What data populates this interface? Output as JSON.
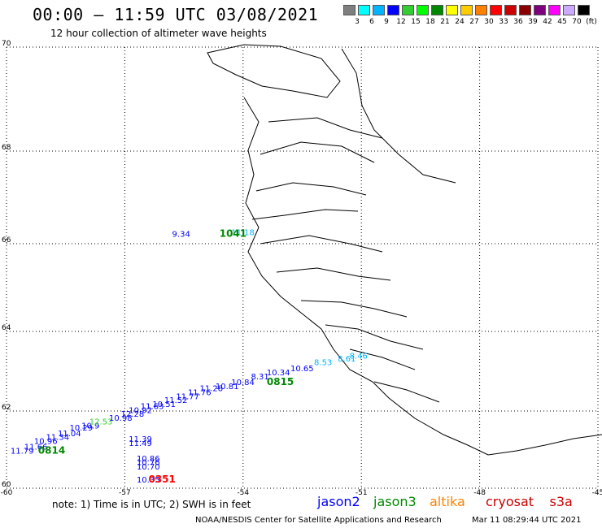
{
  "header": {
    "title": "00:00 – 11:59 UTC 03/08/2021",
    "subtitle": "12 hour collection of altimeter wave heights"
  },
  "legend": {
    "colors": [
      "#7f7f7f",
      "#00ffff",
      "#00b4ff",
      "#0000ff",
      "#33cc33",
      "#00ff00",
      "#008800",
      "#ffff00",
      "#ffcc00",
      "#ff8000",
      "#ff0000",
      "#cc0000",
      "#8b0000",
      "#7f007f",
      "#ff00ff",
      "#ccaaff",
      "#000000"
    ],
    "labels": [
      "3",
      "6",
      "9",
      "12",
      "15",
      "18",
      "21",
      "24",
      "27",
      "30",
      "33",
      "36",
      "39",
      "42",
      "45",
      "70",
      "(ft)"
    ]
  },
  "axes": {
    "x_ticks": [
      "-60",
      "-57",
      "-54",
      "-51",
      "-48",
      "-45"
    ],
    "y_ticks": [
      "70",
      "68",
      "66",
      "64",
      "62",
      "60"
    ]
  },
  "tracks": {
    "time_labels": [
      {
        "text": "0814",
        "color": "#008800",
        "lon": -59.2,
        "lat": 60.9
      },
      {
        "text": "0815",
        "color": "#008800",
        "lon": -53.4,
        "lat": 62.65
      },
      {
        "text": "0351",
        "color": "#ff0000",
        "lon": -56.4,
        "lat": 60.15
      },
      {
        "text": "1041",
        "color": "#008800",
        "lon": -54.6,
        "lat": 66.15
      }
    ],
    "wave_labels": [
      {
        "text": "11.79",
        "color": "#0000ff",
        "lon": -59.9,
        "lat": 60.9
      },
      {
        "text": "11.66",
        "color": "#0000ff",
        "lon": -59.55,
        "lat": 61.0
      },
      {
        "text": "10.96",
        "color": "#0000ff",
        "lon": -59.3,
        "lat": 61.15
      },
      {
        "text": "11.34",
        "color": "#0000ff",
        "lon": -59.0,
        "lat": 61.25
      },
      {
        "text": "11.04",
        "color": "#0000ff",
        "lon": -58.7,
        "lat": 61.35
      },
      {
        "text": "10.29",
        "color": "#0000ff",
        "lon": -58.4,
        "lat": 61.5
      },
      {
        "text": "10.9",
        "color": "#0000ff",
        "lon": -58.1,
        "lat": 61.55
      },
      {
        "text": "12.53",
        "color": "#33cc33",
        "lon": -57.9,
        "lat": 61.65
      },
      {
        "text": "10.98",
        "color": "#0000ff",
        "lon": -57.4,
        "lat": 61.75
      },
      {
        "text": "12.28",
        "color": "#0000ff",
        "lon": -57.1,
        "lat": 61.85
      },
      {
        "text": "10.92",
        "color": "#0000ff",
        "lon": -56.9,
        "lat": 61.95
      },
      {
        "text": "11.63",
        "color": "#0000ff",
        "lon": -56.6,
        "lat": 62.05
      },
      {
        "text": "10.51",
        "color": "#0000ff",
        "lon": -56.3,
        "lat": 62.1
      },
      {
        "text": "11.52",
        "color": "#0000ff",
        "lon": -56.0,
        "lat": 62.2
      },
      {
        "text": "11.77",
        "color": "#0000ff",
        "lon": -55.7,
        "lat": 62.3
      },
      {
        "text": "11.76",
        "color": "#0000ff",
        "lon": -55.4,
        "lat": 62.4
      },
      {
        "text": "11.28",
        "color": "#0000ff",
        "lon": -55.1,
        "lat": 62.5
      },
      {
        "text": "10.81",
        "color": "#0000ff",
        "lon": -54.7,
        "lat": 62.55
      },
      {
        "text": "10.84",
        "color": "#0000ff",
        "lon": -54.3,
        "lat": 62.65
      },
      {
        "text": "8.31",
        "color": "#0000ff",
        "lon": -53.8,
        "lat": 62.8
      },
      {
        "text": "10.34",
        "color": "#0000ff",
        "lon": -53.4,
        "lat": 62.9
      },
      {
        "text": "10.65",
        "color": "#0000ff",
        "lon": -52.8,
        "lat": 63.0
      },
      {
        "text": "8.53",
        "color": "#00b4ff",
        "lon": -52.2,
        "lat": 63.15
      },
      {
        "text": "8.61",
        "color": "#00b4ff",
        "lon": -51.6,
        "lat": 63.25
      },
      {
        "text": "8.46",
        "color": "#00b4ff",
        "lon": -51.3,
        "lat": 63.32
      },
      {
        "text": "11.39",
        "color": "#0000ff",
        "lon": -56.9,
        "lat": 61.2
      },
      {
        "text": "11.49",
        "color": "#0000ff",
        "lon": -56.9,
        "lat": 61.1
      },
      {
        "text": "10.86",
        "color": "#0000ff",
        "lon": -56.7,
        "lat": 60.7
      },
      {
        "text": "10.76",
        "color": "#0000ff",
        "lon": -56.7,
        "lat": 60.6
      },
      {
        "text": "10.70",
        "color": "#0000ff",
        "lon": -56.7,
        "lat": 60.48
      },
      {
        "text": "10.35",
        "color": "#0000ff",
        "lon": -56.7,
        "lat": 60.15
      },
      {
        "text": "9.34",
        "color": "#0000ff",
        "lon": -55.8,
        "lat": 66.15
      },
      {
        "text": "11.18",
        "color": "#00b4ff",
        "lon": -54.3,
        "lat": 66.18
      }
    ]
  },
  "footer": {
    "note": "note:  1) Time is in UTC;  2) SWH is in feet",
    "satellites": [
      {
        "name": "jason2",
        "color": "#0000ff"
      },
      {
        "name": "jason3",
        "color": "#008800"
      },
      {
        "name": "altika",
        "color": "#ff8000"
      },
      {
        "name": "cryosat",
        "color": "#cc0000"
      },
      {
        "name": "s3a",
        "color": "#cc0000"
      }
    ],
    "credit": "NOAA/NESDIS Center for Satellite Applications and Research",
    "timestamp": "Mar 11 08:29:44 UTC 2021"
  }
}
